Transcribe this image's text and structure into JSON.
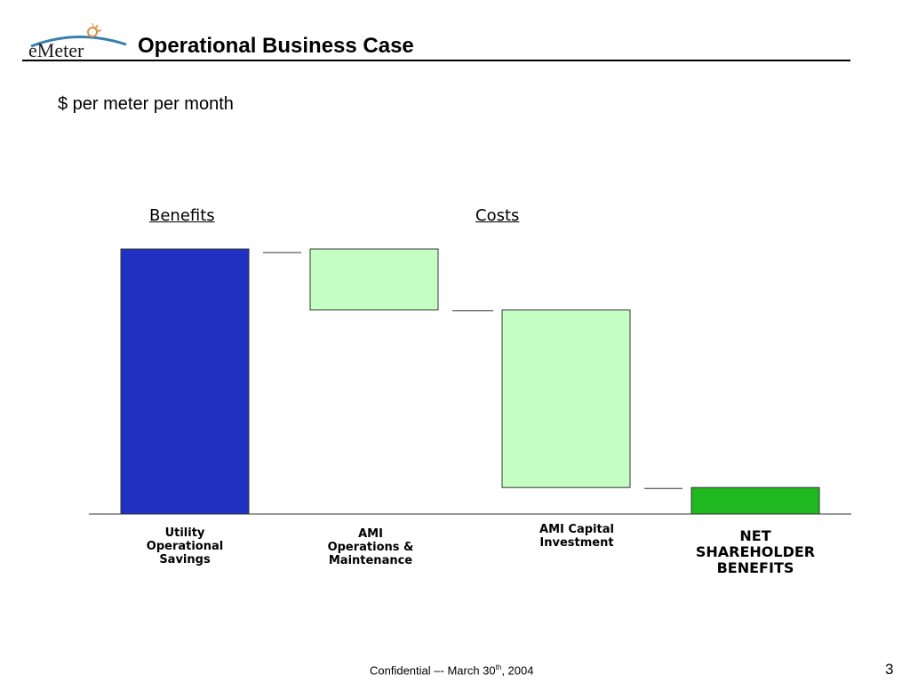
{
  "header": {
    "logo_text": "eMeter",
    "title": "Operational Business Case"
  },
  "subtitle": "$ per meter per month",
  "chart_data": {
    "type": "waterfall",
    "title": "",
    "groups": [
      "Benefits",
      "Costs"
    ],
    "categories": [
      "Utility Operational Savings",
      "AMI Operations & Maintenance",
      "AMI Capital Investment",
      "NET SHAREHOLDER BENEFITS"
    ],
    "category_lines": [
      [
        "Utility",
        "Operational",
        "Savings"
      ],
      [
        "AMI",
        "Operations &",
        "Maintenance"
      ],
      [
        "AMI Capital",
        "Investment"
      ],
      [
        "NET",
        "SHAREHOLDER",
        "BENEFITS"
      ]
    ],
    "values": [
      100,
      -23,
      -67,
      10
    ],
    "value_units": "relative (no axis shown; Utility Operational Savings = 100)",
    "ylim": [
      0,
      100
    ],
    "colors": [
      "#2030c0",
      "#c4ffc4",
      "#c4ffc4",
      "#20b820"
    ],
    "grid": false
  },
  "footer": {
    "text": "Confidential –- March 30",
    "sup": "th",
    "year": ", 2004",
    "page": "3"
  }
}
